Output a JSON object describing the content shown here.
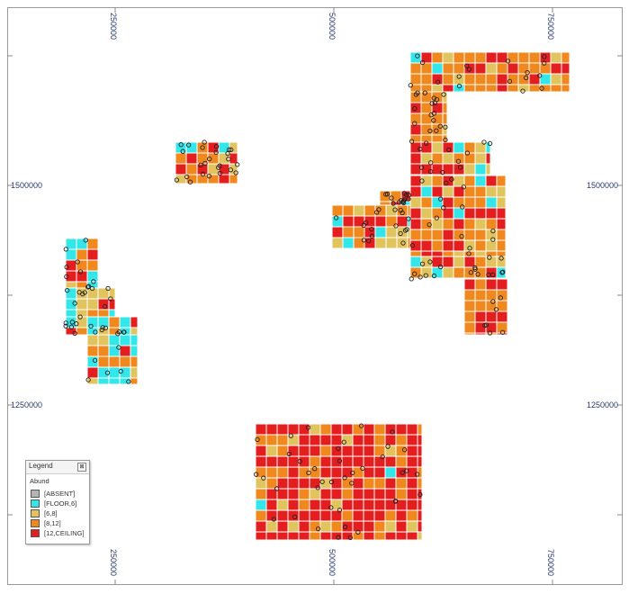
{
  "axes": {
    "top": [
      "250000",
      "500000",
      "750000"
    ],
    "bottom": [
      "250000",
      "500000",
      "750000"
    ],
    "left": [
      "1500000",
      "1250000"
    ],
    "right": [
      "1500000",
      "1250000"
    ]
  },
  "legend": {
    "title": "Legend",
    "close": "⊠",
    "field": "Abund",
    "items": [
      {
        "label": "[ABSENT]",
        "color": "#b4b4b4"
      },
      {
        "label": "[FLOOR,6]",
        "color": "#33e6ea"
      },
      {
        "label": "[6,8]",
        "color": "#e2c45e"
      },
      {
        "label": "[8,12]",
        "color": "#f0881e"
      },
      {
        "label": "[12,CEILING]",
        "color": "#e41e1e"
      }
    ]
  }
}
